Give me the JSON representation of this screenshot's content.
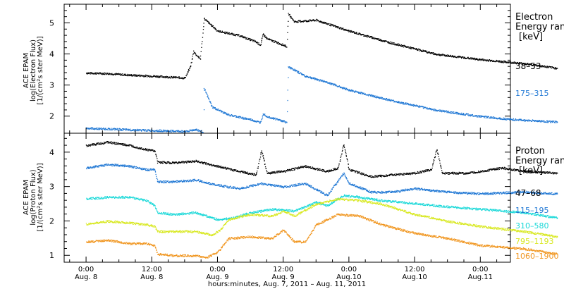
{
  "colors": {
    "axes": "#000000",
    "background": "#ffffff",
    "black": "#000000",
    "blue": "#1f77d4",
    "cyan": "#18d8d8",
    "yellow": "#d8e820",
    "orange": "#f0941c"
  },
  "chart_data": [
    {
      "type": "scatter",
      "panel": "top",
      "ylabel": [
        "ACE EPAM",
        "log(Electron Flux)",
        "[1/(cm²s ster MeV)]"
      ],
      "ylim": [
        1.45,
        5.6
      ],
      "y_ticks": [
        2,
        3,
        4,
        5
      ],
      "legend_title": [
        "Electron",
        "Energy ran",
        "[keV]"
      ],
      "series": [
        {
          "name": "38–53",
          "color": "black",
          "points": [
            [
              0,
              3.4
            ],
            [
              4,
              3.38
            ],
            [
              8,
              3.33
            ],
            [
              12,
              3.3
            ],
            [
              16,
              3.26
            ],
            [
              18,
              3.24
            ],
            [
              19,
              3.6
            ],
            [
              19.6,
              4.1
            ],
            [
              20,
              4.0
            ],
            [
              20.8,
              3.85
            ],
            [
              21.5,
              5.15
            ],
            [
              24,
              4.75
            ],
            [
              28,
              4.6
            ],
            [
              31,
              4.4
            ],
            [
              31.8,
              4.3
            ],
            [
              32.3,
              4.65
            ],
            [
              33,
              4.5
            ],
            [
              36,
              4.3
            ],
            [
              36.6,
              4.25
            ],
            [
              36.9,
              5.3
            ],
            [
              38,
              5.05
            ],
            [
              42,
              5.1
            ],
            [
              48,
              4.75
            ],
            [
              56,
              4.35
            ],
            [
              64,
              4.0
            ],
            [
              72,
              3.83
            ],
            [
              80,
              3.7
            ],
            [
              86,
              3.55
            ]
          ]
        },
        {
          "name": "175–315",
          "color": "blue",
          "points": [
            [
              0,
              1.62
            ],
            [
              4,
              1.6
            ],
            [
              8,
              1.57
            ],
            [
              12,
              1.55
            ],
            [
              16,
              1.53
            ],
            [
              18,
              1.52
            ],
            [
              20,
              1.58
            ],
            [
              21.4,
              1.5
            ],
            [
              21.5,
              2.9
            ],
            [
              23,
              2.3
            ],
            [
              26,
              2.05
            ],
            [
              30,
              1.9
            ],
            [
              31.8,
              1.8
            ],
            [
              32.3,
              2.1
            ],
            [
              33,
              2.0
            ],
            [
              36,
              1.85
            ],
            [
              36.6,
              1.8
            ],
            [
              36.9,
              3.6
            ],
            [
              40,
              3.3
            ],
            [
              44,
              3.1
            ],
            [
              48,
              2.85
            ],
            [
              56,
              2.5
            ],
            [
              64,
              2.2
            ],
            [
              72,
              2.0
            ],
            [
              78,
              1.9
            ],
            [
              86,
              1.82
            ]
          ]
        }
      ]
    },
    {
      "type": "scatter",
      "panel": "bottom",
      "ylabel": [
        "ACE EPAM",
        "log(Proton Flux)",
        "[1/(cm²s ster MeV)]"
      ],
      "ylim": [
        0.8,
        4.55
      ],
      "y_ticks": [
        1,
        2,
        3,
        4
      ],
      "legend_title": [
        "Proton",
        "Energy ran",
        "[keV]"
      ],
      "series": [
        {
          "name": "47–68",
          "color": "black",
          "points": [
            [
              0,
              4.2
            ],
            [
              4,
              4.3
            ],
            [
              8,
              4.2
            ],
            [
              11,
              4.08
            ],
            [
              12.5,
              4.05
            ],
            [
              13,
              3.72
            ],
            [
              16,
              3.7
            ],
            [
              20,
              3.75
            ],
            [
              24,
              3.6
            ],
            [
              28,
              3.45
            ],
            [
              31,
              3.35
            ],
            [
              32,
              4.05
            ],
            [
              33,
              3.4
            ],
            [
              36,
              3.45
            ],
            [
              40,
              3.6
            ],
            [
              44,
              3.45
            ],
            [
              46,
              3.55
            ],
            [
              47,
              4.25
            ],
            [
              48,
              3.5
            ],
            [
              52,
              3.3
            ],
            [
              56,
              3.35
            ],
            [
              60,
              3.4
            ],
            [
              63,
              3.5
            ],
            [
              64,
              4.1
            ],
            [
              65,
              3.4
            ],
            [
              70,
              3.4
            ],
            [
              76,
              3.55
            ],
            [
              80,
              3.45
            ],
            [
              86,
              3.4
            ]
          ]
        },
        {
          "name": "115–195",
          "color": "blue",
          "points": [
            [
              0,
              3.55
            ],
            [
              4,
              3.65
            ],
            [
              8,
              3.6
            ],
            [
              11,
              3.5
            ],
            [
              12.5,
              3.5
            ],
            [
              13,
              3.15
            ],
            [
              16,
              3.15
            ],
            [
              20,
              3.2
            ],
            [
              24,
              3.05
            ],
            [
              28,
              2.95
            ],
            [
              32,
              3.1
            ],
            [
              36,
              3.0
            ],
            [
              40,
              3.1
            ],
            [
              44,
              2.75
            ],
            [
              47,
              3.4
            ],
            [
              48,
              3.1
            ],
            [
              52,
              2.85
            ],
            [
              56,
              2.85
            ],
            [
              60,
              2.95
            ],
            [
              66,
              2.85
            ],
            [
              72,
              2.8
            ],
            [
              80,
              2.85
            ],
            [
              86,
              2.8
            ]
          ]
        },
        {
          "name": "310–580",
          "color": "cyan",
          "points": [
            [
              0,
              2.65
            ],
            [
              4,
              2.7
            ],
            [
              8,
              2.7
            ],
            [
              11,
              2.6
            ],
            [
              12.5,
              2.45
            ],
            [
              13,
              2.25
            ],
            [
              16,
              2.2
            ],
            [
              20,
              2.25
            ],
            [
              24,
              2.05
            ],
            [
              27,
              2.1
            ],
            [
              30,
              2.25
            ],
            [
              34,
              2.35
            ],
            [
              38,
              2.3
            ],
            [
              42,
              2.55
            ],
            [
              44,
              2.45
            ],
            [
              47,
              2.75
            ],
            [
              50,
              2.7
            ],
            [
              54,
              2.6
            ],
            [
              58,
              2.55
            ],
            [
              64,
              2.45
            ],
            [
              72,
              2.35
            ],
            [
              80,
              2.25
            ],
            [
              86,
              2.1
            ]
          ]
        },
        {
          "name": "795–1193",
          "color": "yellow",
          "points": [
            [
              0,
              1.92
            ],
            [
              4,
              2.0
            ],
            [
              8,
              1.95
            ],
            [
              11,
              1.9
            ],
            [
              12.5,
              1.85
            ],
            [
              13,
              1.7
            ],
            [
              16,
              1.7
            ],
            [
              20,
              1.7
            ],
            [
              23,
              1.6
            ],
            [
              24.5,
              1.75
            ],
            [
              26,
              2.05
            ],
            [
              30,
              2.2
            ],
            [
              34,
              2.15
            ],
            [
              36,
              2.3
            ],
            [
              38,
              2.15
            ],
            [
              42,
              2.5
            ],
            [
              46,
              2.65
            ],
            [
              50,
              2.6
            ],
            [
              54,
              2.5
            ],
            [
              60,
              2.2
            ],
            [
              66,
              2.0
            ],
            [
              72,
              1.85
            ],
            [
              80,
              1.7
            ],
            [
              86,
              1.55
            ]
          ]
        },
        {
          "name": "1060–1900",
          "color": "orange",
          "points": [
            [
              0,
              1.4
            ],
            [
              4,
              1.45
            ],
            [
              8,
              1.35
            ],
            [
              11,
              1.35
            ],
            [
              12.5,
              1.3
            ],
            [
              13,
              1.05
            ],
            [
              16,
              1.0
            ],
            [
              20,
              1.0
            ],
            [
              22,
              0.95
            ],
            [
              24,
              1.1
            ],
            [
              26,
              1.5
            ],
            [
              30,
              1.55
            ],
            [
              34,
              1.5
            ],
            [
              36,
              1.75
            ],
            [
              38,
              1.4
            ],
            [
              40,
              1.4
            ],
            [
              42,
              1.9
            ],
            [
              46,
              2.2
            ],
            [
              50,
              2.15
            ],
            [
              54,
              1.9
            ],
            [
              60,
              1.65
            ],
            [
              66,
              1.5
            ],
            [
              72,
              1.3
            ],
            [
              80,
              1.2
            ],
            [
              86,
              1.05
            ]
          ]
        }
      ]
    }
  ],
  "x_axis": {
    "ticks": [
      {
        "hours": 0,
        "time": "0:00",
        "date": "Aug. 8"
      },
      {
        "hours": 12,
        "time": "12:00",
        "date": "Aug. 8"
      },
      {
        "hours": 24,
        "time": "0:00",
        "date": "Aug. 9"
      },
      {
        "hours": 36,
        "time": "12:00",
        "date": "Aug. 9"
      },
      {
        "hours": 48,
        "time": "0:00",
        "date": "Aug.10"
      },
      {
        "hours": 60,
        "time": "12:00",
        "date": "Aug.10"
      },
      {
        "hours": 72,
        "time": "0:00",
        "date": "Aug.11"
      }
    ],
    "xlim_hours": [
      -4,
      77.5
    ],
    "label": "hours:minutes, Aug.  7, 2011 – Aug. 11, 2011"
  }
}
